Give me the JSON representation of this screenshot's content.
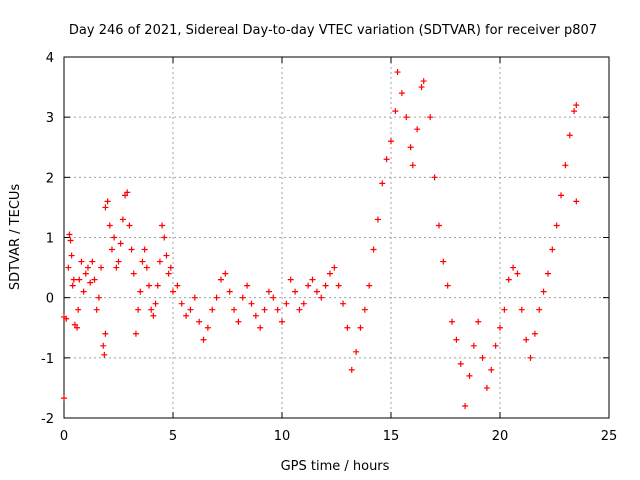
{
  "chart_data": {
    "type": "scatter",
    "title": "Day 246 of 2021, Sidereal Day-to-day VTEC variation (SDTVAR) for receiver p807",
    "xlabel": "GPS time / hours",
    "ylabel": "SDTVAR / TECUs",
    "xlim": [
      0,
      25
    ],
    "ylim": [
      -2,
      4
    ],
    "x_ticks": [
      0,
      5,
      10,
      15,
      20,
      25
    ],
    "y_ticks": [
      -2,
      -1,
      0,
      1,
      2,
      3,
      4
    ],
    "grid": true,
    "marker": "+",
    "series": [
      {
        "name": "SDTVAR",
        "color": "#ff0000",
        "points": [
          [
            0.0,
            -0.32
          ],
          [
            0.0,
            -1.67
          ],
          [
            0.1,
            -0.35
          ],
          [
            0.2,
            0.5
          ],
          [
            0.25,
            1.05
          ],
          [
            0.3,
            0.95
          ],
          [
            0.35,
            0.7
          ],
          [
            0.4,
            0.2
          ],
          [
            0.45,
            0.3
          ],
          [
            0.5,
            -0.45
          ],
          [
            0.6,
            -0.5
          ],
          [
            0.65,
            -0.2
          ],
          [
            0.7,
            0.3
          ],
          [
            0.8,
            0.6
          ],
          [
            0.9,
            0.1
          ],
          [
            1.0,
            0.4
          ],
          [
            1.1,
            0.5
          ],
          [
            1.2,
            0.25
          ],
          [
            1.3,
            0.6
          ],
          [
            1.4,
            0.3
          ],
          [
            1.5,
            -0.2
          ],
          [
            1.6,
            0.0
          ],
          [
            1.7,
            0.5
          ],
          [
            1.8,
            -0.8
          ],
          [
            1.85,
            -0.95
          ],
          [
            1.9,
            -0.6
          ],
          [
            1.9,
            1.5
          ],
          [
            2.0,
            1.6
          ],
          [
            2.1,
            1.2
          ],
          [
            2.2,
            0.8
          ],
          [
            2.3,
            1.0
          ],
          [
            2.4,
            0.5
          ],
          [
            2.5,
            0.6
          ],
          [
            2.6,
            0.9
          ],
          [
            2.7,
            1.3
          ],
          [
            2.8,
            1.7
          ],
          [
            2.9,
            1.75
          ],
          [
            3.0,
            1.2
          ],
          [
            3.1,
            0.8
          ],
          [
            3.2,
            0.4
          ],
          [
            3.3,
            -0.6
          ],
          [
            3.4,
            -0.2
          ],
          [
            3.5,
            0.1
          ],
          [
            3.6,
            0.6
          ],
          [
            3.7,
            0.8
          ],
          [
            3.8,
            0.5
          ],
          [
            3.9,
            0.2
          ],
          [
            4.0,
            -0.2
          ],
          [
            4.1,
            -0.3
          ],
          [
            4.2,
            -0.1
          ],
          [
            4.3,
            0.2
          ],
          [
            4.4,
            0.6
          ],
          [
            4.5,
            1.2
          ],
          [
            4.6,
            1.0
          ],
          [
            4.7,
            0.7
          ],
          [
            4.8,
            0.4
          ],
          [
            4.9,
            0.5
          ],
          [
            5.0,
            0.1
          ],
          [
            5.2,
            0.2
          ],
          [
            5.4,
            -0.1
          ],
          [
            5.6,
            -0.3
          ],
          [
            5.8,
            -0.2
          ],
          [
            6.0,
            0.0
          ],
          [
            6.2,
            -0.4
          ],
          [
            6.4,
            -0.7
          ],
          [
            6.6,
            -0.5
          ],
          [
            6.8,
            -0.2
          ],
          [
            7.0,
            0.0
          ],
          [
            7.2,
            0.3
          ],
          [
            7.4,
            0.4
          ],
          [
            7.6,
            0.1
          ],
          [
            7.8,
            -0.2
          ],
          [
            8.0,
            -0.4
          ],
          [
            8.2,
            0.0
          ],
          [
            8.4,
            0.2
          ],
          [
            8.6,
            -0.1
          ],
          [
            8.8,
            -0.3
          ],
          [
            9.0,
            -0.5
          ],
          [
            9.2,
            -0.2
          ],
          [
            9.4,
            0.1
          ],
          [
            9.6,
            0.0
          ],
          [
            9.8,
            -0.2
          ],
          [
            10.0,
            -0.4
          ],
          [
            10.2,
            -0.1
          ],
          [
            10.4,
            0.3
          ],
          [
            10.6,
            0.1
          ],
          [
            10.8,
            -0.2
          ],
          [
            11.0,
            -0.1
          ],
          [
            11.2,
            0.2
          ],
          [
            11.4,
            0.3
          ],
          [
            11.6,
            0.1
          ],
          [
            11.8,
            0.0
          ],
          [
            12.0,
            0.2
          ],
          [
            12.2,
            0.4
          ],
          [
            12.4,
            0.5
          ],
          [
            12.6,
            0.2
          ],
          [
            12.8,
            -0.1
          ],
          [
            13.0,
            -0.5
          ],
          [
            13.2,
            -1.2
          ],
          [
            13.4,
            -0.9
          ],
          [
            13.6,
            -0.5
          ],
          [
            13.8,
            -0.2
          ],
          [
            14.0,
            0.2
          ],
          [
            14.2,
            0.8
          ],
          [
            14.4,
            1.3
          ],
          [
            14.6,
            1.9
          ],
          [
            14.8,
            2.3
          ],
          [
            15.0,
            2.6
          ],
          [
            15.2,
            3.1
          ],
          [
            15.3,
            3.75
          ],
          [
            15.5,
            3.4
          ],
          [
            15.7,
            3.0
          ],
          [
            15.9,
            2.5
          ],
          [
            16.0,
            2.2
          ],
          [
            16.2,
            2.8
          ],
          [
            16.4,
            3.5
          ],
          [
            16.5,
            3.6
          ],
          [
            16.8,
            3.0
          ],
          [
            17.0,
            2.0
          ],
          [
            17.2,
            1.2
          ],
          [
            17.4,
            0.6
          ],
          [
            17.6,
            0.2
          ],
          [
            17.8,
            -0.4
          ],
          [
            18.0,
            -0.7
          ],
          [
            18.2,
            -1.1
          ],
          [
            18.4,
            -1.8
          ],
          [
            18.6,
            -1.3
          ],
          [
            18.8,
            -0.8
          ],
          [
            19.0,
            -0.4
          ],
          [
            19.2,
            -1.0
          ],
          [
            19.4,
            -1.5
          ],
          [
            19.6,
            -1.2
          ],
          [
            19.8,
            -0.8
          ],
          [
            20.0,
            -0.5
          ],
          [
            20.2,
            -0.2
          ],
          [
            20.4,
            0.3
          ],
          [
            20.6,
            0.5
          ],
          [
            20.8,
            0.4
          ],
          [
            21.0,
            -0.2
          ],
          [
            21.2,
            -0.7
          ],
          [
            21.4,
            -1.0
          ],
          [
            21.6,
            -0.6
          ],
          [
            21.8,
            -0.2
          ],
          [
            22.0,
            0.1
          ],
          [
            22.2,
            0.4
          ],
          [
            22.4,
            0.8
          ],
          [
            22.6,
            1.2
          ],
          [
            22.8,
            1.7
          ],
          [
            23.0,
            2.2
          ],
          [
            23.2,
            2.7
          ],
          [
            23.4,
            3.1
          ],
          [
            23.5,
            3.2
          ],
          [
            23.5,
            1.6
          ]
        ]
      }
    ]
  }
}
